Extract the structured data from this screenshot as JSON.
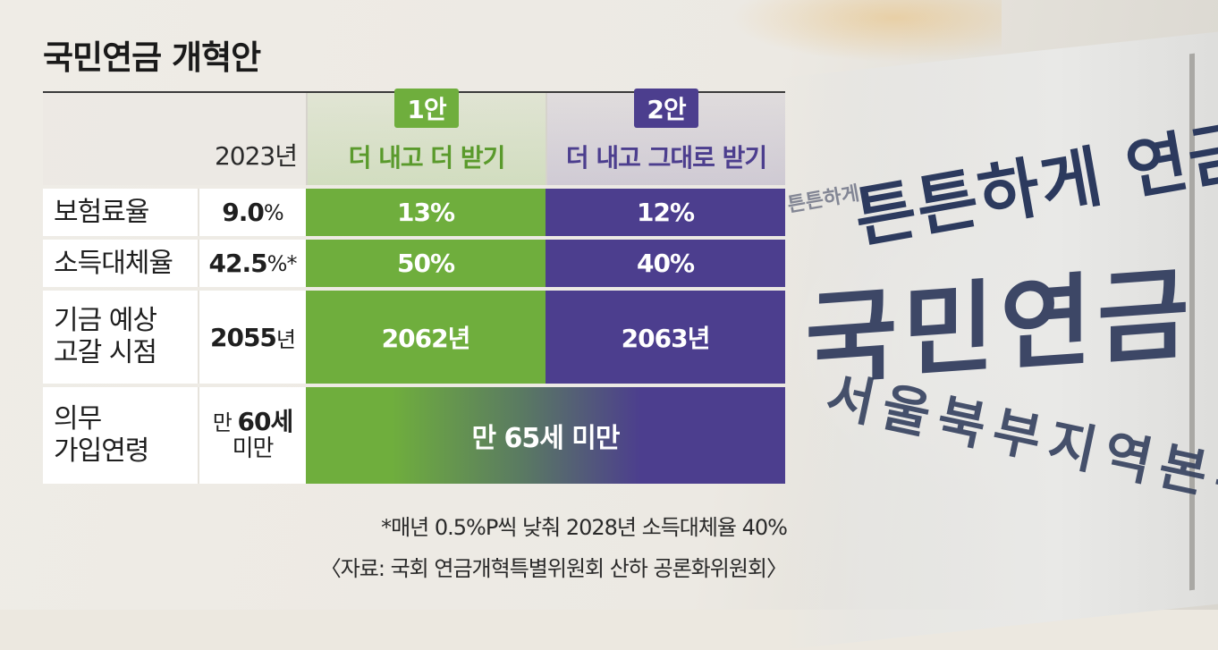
{
  "title": "국민연금 개혁안",
  "columns": {
    "baseline_year": "2023년",
    "plan1": {
      "badge": "1안",
      "name": "더 내고 더 받기",
      "color": "#6fae3d"
    },
    "plan2": {
      "badge": "2안",
      "name": "더 내고 그대로 받기",
      "color": "#4c3e8e"
    }
  },
  "rows": [
    {
      "label": "보험료율",
      "base_value": "9.0",
      "base_unit": "%",
      "plan1": "13%",
      "plan2": "12%"
    },
    {
      "label": "소득대체율",
      "base_value": "42.5",
      "base_unit": "%*",
      "plan1": "50%",
      "plan2": "40%"
    },
    {
      "label_line1": "기금 예상",
      "label_line2": "고갈 시점",
      "base_value": "2055",
      "base_unit": "년",
      "plan1": "2062년",
      "plan2": "2063년"
    },
    {
      "label_line1": "의무",
      "label_line2": "가입연령",
      "base_line1_pre": "만 ",
      "base_line1_bold": "60세",
      "base_line2": "미만",
      "both_plans": "만 65세 미만"
    }
  ],
  "footnote": "*매년 0.5%P씩 낮춰 2028년 소득대체율 40%",
  "source": "〈자료: 국회 연금개혁특별위원회 산하 공론화위원회〉",
  "background_sign": {
    "line1": "튼튼하게 연금을 튼튼하",
    "line_small": "튼튼하게",
    "line2": "국민연금",
    "line3": "서울북부지역본부"
  },
  "chart_data": {
    "type": "table",
    "title": "국민연금 개혁안",
    "columns": [
      "",
      "2023년",
      "1안 더 내고 더 받기",
      "2안 더 내고 그대로 받기"
    ],
    "rows": [
      [
        "보험료율",
        "9.0%",
        "13%",
        "12%"
      ],
      [
        "소득대체율",
        "42.5%*",
        "50%",
        "40%"
      ],
      [
        "기금 예상 고갈 시점",
        "2055년",
        "2062년",
        "2063년"
      ],
      [
        "의무 가입연령",
        "만 60세 미만",
        "만 65세 미만",
        "만 65세 미만"
      ]
    ],
    "legend": [
      {
        "name": "1안",
        "color": "#6fae3d"
      },
      {
        "name": "2안",
        "color": "#4c3e8e"
      }
    ]
  }
}
